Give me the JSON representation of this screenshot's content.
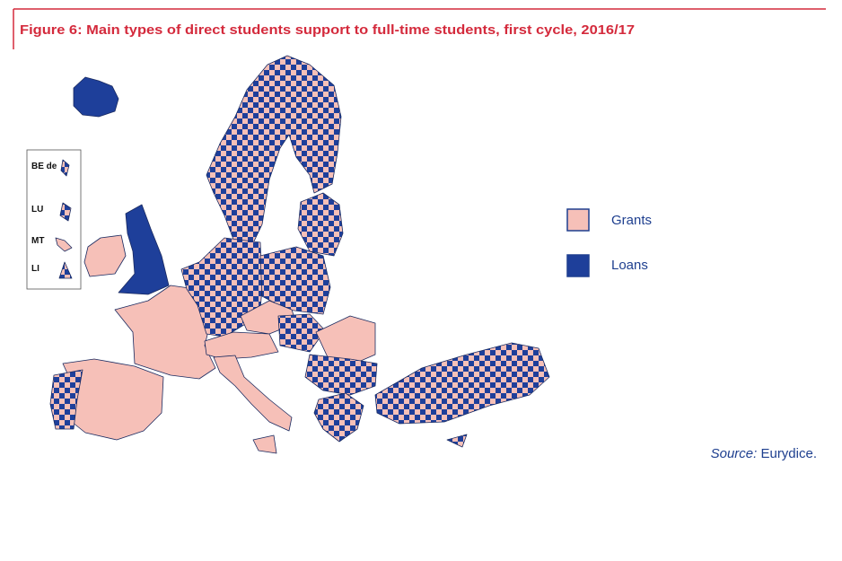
{
  "title": "Figure 6: Main types of direct students support to full-time students, first cycle, 2016/17",
  "legend": [
    {
      "label": "Grants"
    },
    {
      "label": "Loans"
    }
  ],
  "insets": [
    "BE de",
    "LU",
    "MT",
    "LI"
  ],
  "source": {
    "label": "Source:",
    "text": "Eurydice."
  }
}
